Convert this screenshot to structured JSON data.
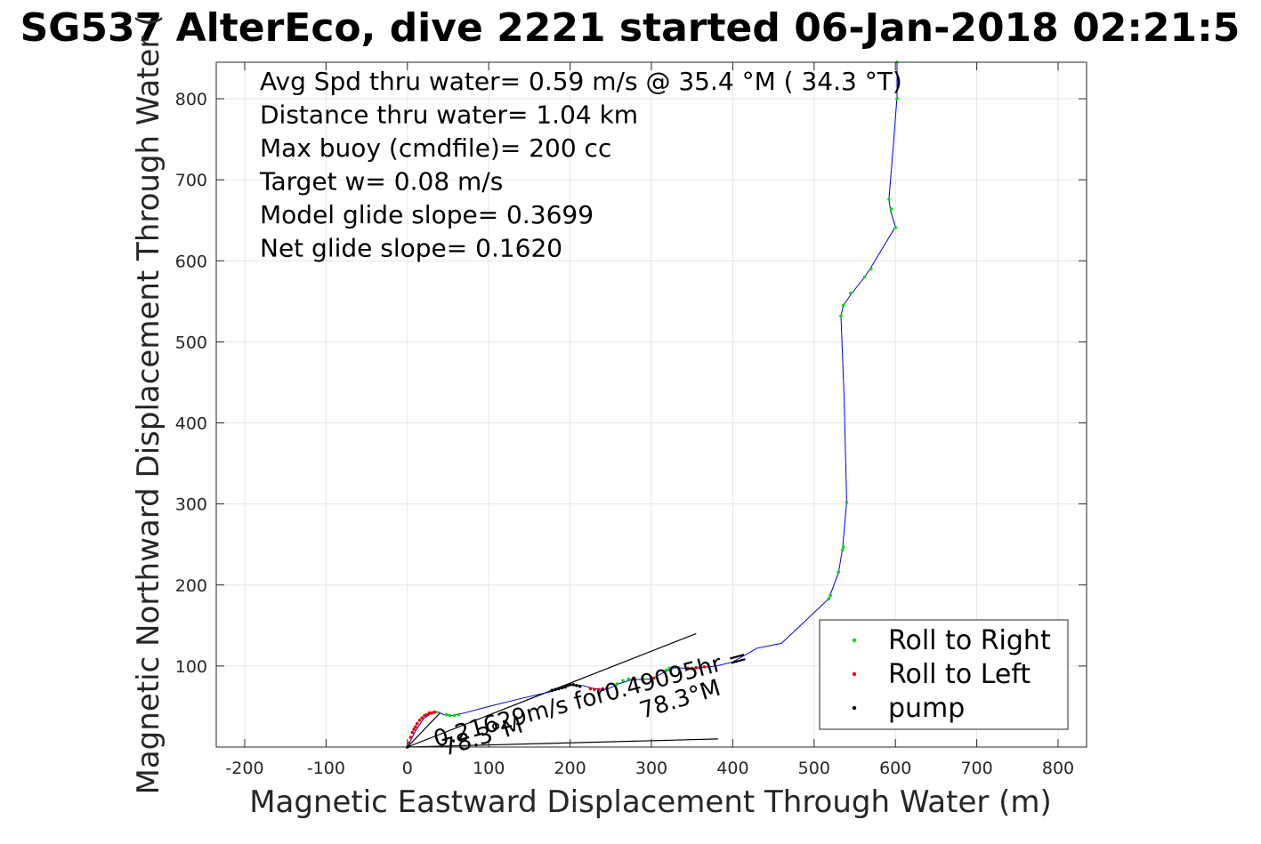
{
  "chart_data": {
    "type": "scatter",
    "title": "SG537 AlterEco, dive 2221 started 06-Jan-2018 02:21:5",
    "xlabel": "Magnetic Eastward Displacement Through Water (m)",
    "ylabel": "Magnetic Northward Displacement Through Water (",
    "xlim": [
      -235,
      835
    ],
    "ylim": [
      0,
      845
    ],
    "xticks": [
      -200,
      -100,
      0,
      100,
      200,
      300,
      400,
      500,
      600,
      700,
      800
    ],
    "yticks": [
      100,
      200,
      300,
      400,
      500,
      600,
      700,
      800
    ],
    "xtick_labels": [
      "-200",
      "-100",
      "0",
      "100",
      "200",
      "300",
      "400",
      "500",
      "600",
      "700",
      "800"
    ],
    "ytick_labels": [
      "100",
      "200",
      "300",
      "400",
      "500",
      "600",
      "700",
      "800"
    ],
    "grid": true,
    "legend_position": "bottom-right",
    "annotations": [
      "Avg Spd thru water=  0.59 m/s @  35.4 °M ( 34.3 °T)",
      "Distance thru water=  1.04 km",
      "Max buoy (cmdfile)= 200 cc",
      "Target w= 0.08 m/s",
      "Model glide slope= 0.3699",
      "Net glide slope= 0.1620"
    ],
    "current_label": "0.21629m/s for0.49095hr = ",
    "heading_label_1": "78.3°M",
    "heading_label_2": "78.3°M",
    "track": [
      [
        0,
        0
      ],
      [
        10,
        20
      ],
      [
        20,
        35
      ],
      [
        30,
        42
      ],
      [
        38,
        43
      ],
      [
        45,
        40
      ],
      [
        55,
        39
      ],
      [
        70,
        42
      ],
      [
        100,
        50
      ],
      [
        140,
        60
      ],
      [
        175,
        68
      ],
      [
        200,
        76
      ],
      [
        215,
        76
      ],
      [
        230,
        72
      ],
      [
        245,
        71
      ],
      [
        260,
        78
      ],
      [
        275,
        83
      ],
      [
        300,
        84
      ],
      [
        315,
        92
      ],
      [
        330,
        98
      ],
      [
        345,
        97
      ],
      [
        360,
        98
      ],
      [
        380,
        100
      ],
      [
        400,
        105
      ],
      [
        430,
        122
      ],
      [
        460,
        128
      ],
      [
        518,
        183
      ],
      [
        530,
        215
      ],
      [
        535,
        245
      ],
      [
        540,
        302
      ],
      [
        537,
        430
      ],
      [
        533,
        532
      ],
      [
        536,
        545
      ],
      [
        545,
        558
      ],
      [
        562,
        580
      ],
      [
        570,
        592
      ],
      [
        600,
        642
      ],
      [
        594,
        662
      ],
      [
        592,
        676
      ],
      [
        598,
        750
      ],
      [
        602,
        802
      ],
      [
        602,
        845
      ]
    ],
    "series": [
      {
        "name": "Roll to Right",
        "color": "#00dd00",
        "points": [
          [
            35,
            43
          ],
          [
            48,
            40
          ],
          [
            52,
            39
          ],
          [
            58,
            39
          ],
          [
            63,
            40
          ],
          [
            258,
            78
          ],
          [
            265,
            82
          ],
          [
            272,
            84
          ],
          [
            280,
            84
          ],
          [
            290,
            84
          ],
          [
            318,
            95
          ],
          [
            322,
            97
          ],
          [
            326,
            98
          ],
          [
            333,
            98
          ],
          [
            518,
            183
          ],
          [
            520,
            187
          ],
          [
            530,
            216
          ],
          [
            535,
            243
          ],
          [
            536,
            247
          ],
          [
            540,
            302
          ],
          [
            533,
            532
          ],
          [
            536,
            545
          ],
          [
            545,
            560
          ],
          [
            562,
            580
          ],
          [
            570,
            590
          ],
          [
            600,
            641
          ],
          [
            595,
            664
          ],
          [
            592,
            676
          ],
          [
            602,
            800
          ],
          [
            602,
            845
          ]
        ]
      },
      {
        "name": "Roll to Left",
        "color": "#ee0000",
        "points": [
          [
            2,
            5
          ],
          [
            4,
            12
          ],
          [
            6,
            18
          ],
          [
            8,
            22
          ],
          [
            10,
            25
          ],
          [
            12,
            29
          ],
          [
            15,
            33
          ],
          [
            18,
            36
          ],
          [
            21,
            39
          ],
          [
            24,
            40
          ],
          [
            27,
            42
          ],
          [
            30,
            42
          ],
          [
            33,
            43
          ],
          [
            225,
            72
          ],
          [
            230,
            71
          ],
          [
            235,
            71
          ],
          [
            240,
            72
          ],
          [
            245,
            72
          ],
          [
            300,
            84
          ],
          [
            303,
            85
          ],
          [
            345,
            97
          ],
          [
            350,
            97
          ],
          [
            355,
            98
          ],
          [
            360,
            98
          ],
          [
            365,
            99
          ],
          [
            370,
            100
          ]
        ]
      },
      {
        "name": "pump",
        "color": "#000000",
        "points": [
          [
            0,
            0
          ],
          [
            178,
            70
          ],
          [
            182,
            71
          ],
          [
            186,
            72
          ],
          [
            190,
            73
          ],
          [
            194,
            74
          ],
          [
            197,
            76
          ],
          [
            200,
            77
          ],
          [
            204,
            77
          ],
          [
            208,
            76
          ],
          [
            212,
            75
          ]
        ]
      }
    ],
    "lines": [
      {
        "color": "#000000",
        "points": [
          [
            0,
            0
          ],
          [
            355,
            140
          ]
        ]
      },
      {
        "color": "#000000",
        "points": [
          [
            0,
            0
          ],
          [
            382,
            10
          ]
        ]
      },
      {
        "color": "#000000",
        "points": [
          [
            0,
            0
          ],
          [
            40,
            42
          ]
        ]
      }
    ],
    "colors": {
      "track": "#0000dd",
      "grid": "#e6e6e6",
      "axis": "#262626"
    }
  }
}
